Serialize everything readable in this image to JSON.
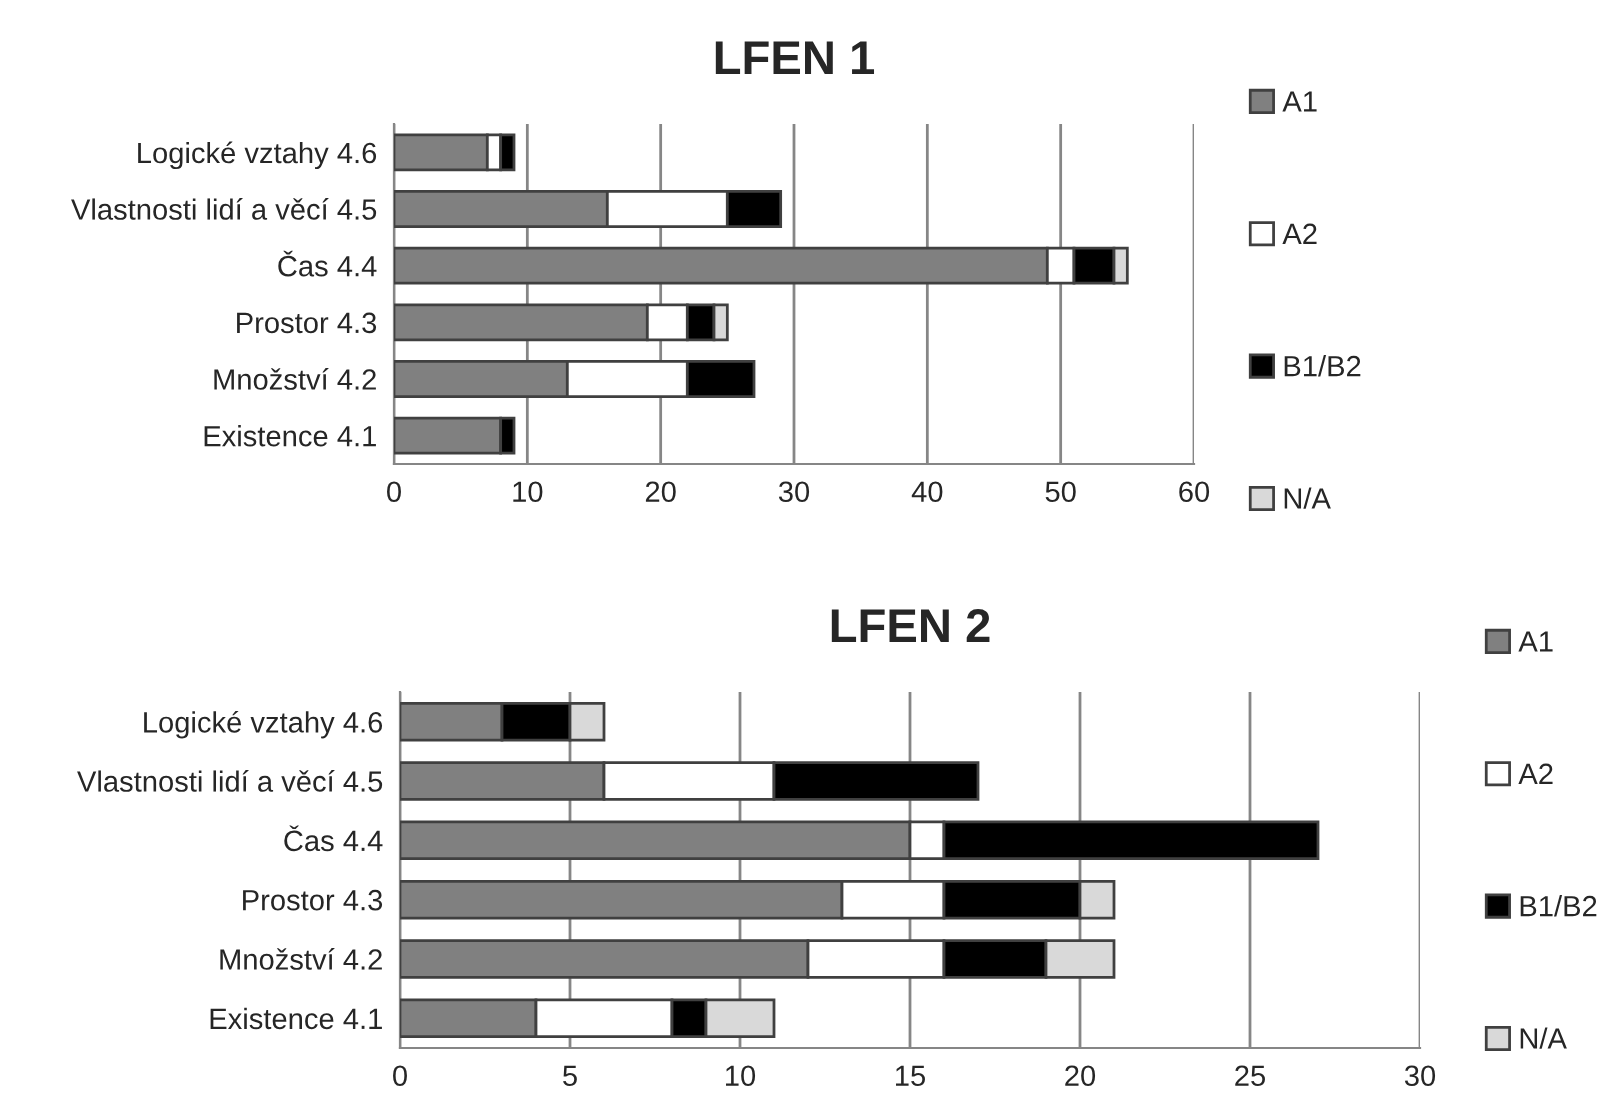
{
  "chart_data": [
    {
      "type": "bar",
      "orientation": "horizontal",
      "stacked": true,
      "title": "LFEN 1",
      "categories": [
        "Logické vztahy 4.6",
        "Vlastnosti lidí a věcí 4.5",
        "Čas 4.4",
        "Prostor 4.3",
        "Množství 4.2",
        "Existence 4.1"
      ],
      "series": [
        {
          "name": "A1",
          "color": "#808080",
          "values": [
            7,
            16,
            49,
            19,
            13,
            8
          ]
        },
        {
          "name": "A2",
          "color": "#ffffff",
          "values": [
            1,
            9,
            2,
            3,
            9,
            null
          ]
        },
        {
          "name": "B1/B2",
          "color": "#000000",
          "values": [
            1,
            4,
            3,
            2,
            5,
            1
          ]
        },
        {
          "name": "N/A",
          "color": "#d9d9d9",
          "values": [
            null,
            null,
            1,
            1,
            null,
            null
          ]
        }
      ],
      "xlim": [
        0,
        60
      ],
      "xticks": [
        0,
        10,
        20,
        30,
        40,
        50,
        60
      ],
      "grid": "x",
      "legend": "right"
    },
    {
      "type": "bar",
      "orientation": "horizontal",
      "stacked": true,
      "title": "LFEN 2",
      "categories": [
        "Logické vztahy 4.6",
        "Vlastnosti lidí a věcí 4.5",
        "Čas 4.4",
        "Prostor 4.3",
        "Množství 4.2",
        "Existence 4.1"
      ],
      "series": [
        {
          "name": "A1",
          "color": "#808080",
          "values": [
            3,
            6,
            15,
            13,
            12,
            4
          ]
        },
        {
          "name": "A2",
          "color": "#ffffff",
          "values": [
            null,
            5,
            1,
            3,
            4,
            4
          ]
        },
        {
          "name": "B1/B2",
          "color": "#000000",
          "values": [
            2,
            6,
            11,
            4,
            3,
            1
          ]
        },
        {
          "name": "N/A",
          "color": "#d9d9d9",
          "values": [
            1,
            null,
            null,
            1,
            2,
            2
          ]
        }
      ],
      "xlim": [
        0,
        30
      ],
      "xticks": [
        0,
        5,
        10,
        15,
        20,
        25,
        30
      ],
      "grid": "x",
      "legend": "right"
    }
  ]
}
